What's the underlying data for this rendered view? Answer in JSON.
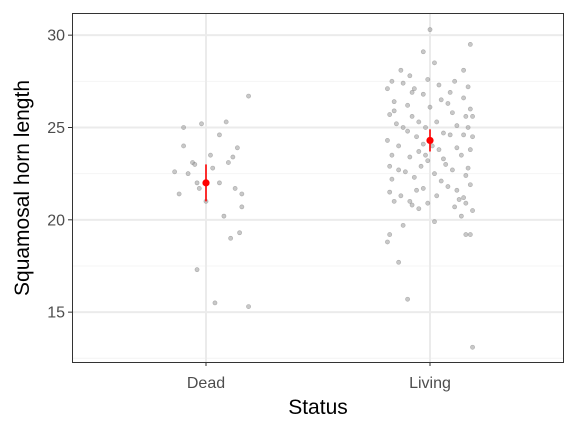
{
  "chart_data": {
    "type": "scatter",
    "xlabel": "Status",
    "ylabel": "Squamosal horn length",
    "categories": [
      "Dead",
      "Living"
    ],
    "ylim": [
      12.3,
      31.2
    ],
    "yticks": [
      15,
      20,
      25,
      30
    ],
    "grid": true,
    "colors": {
      "points": "#9a9a9a",
      "summary": "#ff0000",
      "grid_major": "#ebebeb",
      "grid_minor": "#f4f4f4",
      "panel_border": "#333333"
    },
    "series": [
      {
        "category": "Dead",
        "points": [
          [
            -0.14,
            22.6
          ],
          [
            -0.08,
            22.5
          ],
          [
            -0.06,
            23.1
          ],
          [
            -0.1,
            24.0
          ],
          [
            -0.02,
            25.2
          ],
          [
            0.02,
            23.5
          ],
          [
            0.06,
            24.6
          ],
          [
            0.09,
            25.3
          ],
          [
            0.12,
            23.4
          ],
          [
            0.14,
            23.9
          ],
          [
            0.1,
            23.1
          ],
          [
            -0.04,
            22.0
          ],
          [
            -0.03,
            21.7
          ],
          [
            0.06,
            22.0
          ],
          [
            0.13,
            21.7
          ],
          [
            0.16,
            21.4
          ],
          [
            -0.12,
            21.4
          ],
          [
            -0.05,
            23.0
          ],
          [
            0.0,
            21.0
          ],
          [
            0.16,
            20.7
          ],
          [
            0.08,
            20.2
          ],
          [
            0.15,
            19.3
          ],
          [
            0.11,
            19.0
          ],
          [
            -0.04,
            17.3
          ],
          [
            0.04,
            15.5
          ],
          [
            0.19,
            15.3
          ],
          [
            0.19,
            26.7
          ],
          [
            -0.1,
            25.0
          ],
          [
            0.03,
            22.8
          ]
        ],
        "mean": 22.0,
        "ci": [
          21.0,
          23.0
        ]
      },
      {
        "category": "Living",
        "points": [
          [
            -0.19,
            27.1
          ],
          [
            -0.17,
            27.5
          ],
          [
            -0.16,
            26.4
          ],
          [
            -0.18,
            25.7
          ],
          [
            -0.15,
            25.2
          ],
          [
            -0.19,
            24.3
          ],
          [
            -0.17,
            23.5
          ],
          [
            -0.18,
            22.9
          ],
          [
            -0.17,
            22.2
          ],
          [
            -0.18,
            21.5
          ],
          [
            -0.16,
            21.0
          ],
          [
            -0.18,
            19.2
          ],
          [
            -0.19,
            18.8
          ],
          [
            -0.14,
            17.7
          ],
          [
            -0.12,
            19.7
          ],
          [
            -0.13,
            21.3
          ],
          [
            -0.11,
            22.6
          ],
          [
            -0.14,
            24.0
          ],
          [
            -0.12,
            25.0
          ],
          [
            -0.1,
            26.2
          ],
          [
            -0.12,
            27.4
          ],
          [
            -0.13,
            28.1
          ],
          [
            -0.09,
            27.8
          ],
          [
            -0.08,
            26.9
          ],
          [
            -0.08,
            25.6
          ],
          [
            -0.06,
            24.5
          ],
          [
            -0.09,
            23.4
          ],
          [
            -0.07,
            22.3
          ],
          [
            -0.06,
            21.6
          ],
          [
            -0.08,
            20.8
          ],
          [
            -0.05,
            20.6
          ],
          [
            -0.09,
            21.0
          ],
          [
            -0.04,
            22.9
          ],
          [
            -0.03,
            24.1
          ],
          [
            -0.05,
            25.3
          ],
          [
            -0.03,
            26.8
          ],
          [
            -0.01,
            27.6
          ],
          [
            0.0,
            26.1
          ],
          [
            -0.02,
            25.0
          ],
          [
            0.01,
            24.0
          ],
          [
            -0.01,
            23.2
          ],
          [
            0.02,
            22.5
          ],
          [
            -0.03,
            21.7
          ],
          [
            0.03,
            21.3
          ],
          [
            -0.01,
            20.9
          ],
          [
            0.0,
            30.3
          ],
          [
            -0.03,
            29.1
          ],
          [
            0.02,
            28.5
          ],
          [
            0.04,
            27.3
          ],
          [
            0.05,
            26.5
          ],
          [
            0.03,
            25.3
          ],
          [
            0.06,
            24.7
          ],
          [
            0.04,
            23.8
          ],
          [
            0.07,
            23.0
          ],
          [
            0.05,
            22.1
          ],
          [
            0.08,
            21.8
          ],
          [
            0.02,
            19.9
          ],
          [
            0.09,
            24.6
          ],
          [
            0.1,
            25.8
          ],
          [
            0.09,
            26.9
          ],
          [
            0.11,
            27.5
          ],
          [
            0.12,
            23.9
          ],
          [
            0.1,
            22.7
          ],
          [
            0.12,
            21.6
          ],
          [
            0.11,
            20.7
          ],
          [
            0.14,
            20.2
          ],
          [
            0.15,
            21.2
          ],
          [
            0.16,
            22.4
          ],
          [
            0.14,
            23.5
          ],
          [
            0.15,
            24.6
          ],
          [
            0.16,
            25.6
          ],
          [
            0.15,
            26.6
          ],
          [
            0.17,
            27.2
          ],
          [
            0.18,
            26.0
          ],
          [
            0.17,
            25.0
          ],
          [
            0.18,
            23.8
          ],
          [
            0.17,
            22.8
          ],
          [
            0.18,
            21.9
          ],
          [
            0.16,
            20.9
          ],
          [
            0.15,
            28.1
          ],
          [
            0.19,
            24.5
          ],
          [
            0.19,
            25.6
          ],
          [
            0.16,
            19.2
          ],
          [
            0.18,
            19.2
          ],
          [
            0.18,
            29.5
          ],
          [
            0.19,
            13.1
          ],
          [
            -0.1,
            15.7
          ],
          [
            0.19,
            20.5
          ],
          [
            -0.16,
            25.9
          ],
          [
            -0.1,
            24.8
          ],
          [
            -0.05,
            23.7
          ],
          [
            0.06,
            23.3
          ],
          [
            0.12,
            25.1
          ],
          [
            -0.14,
            22.7
          ],
          [
            0.08,
            26.3
          ],
          [
            -0.02,
            23.5
          ],
          [
            0.13,
            21.1
          ],
          [
            -0.07,
            27.1
          ]
        ],
        "mean": 24.3,
        "ci": [
          23.7,
          24.9
        ]
      }
    ]
  }
}
